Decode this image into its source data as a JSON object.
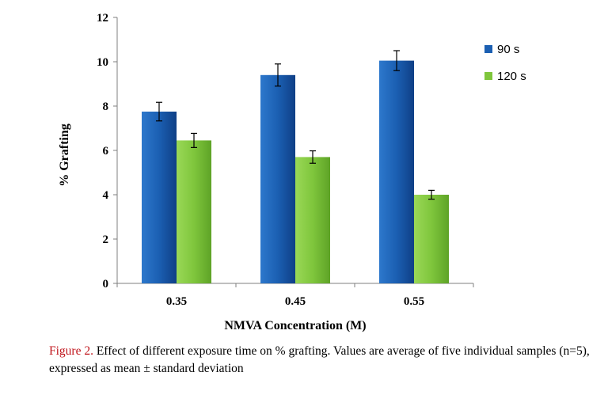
{
  "chart_data": {
    "type": "bar",
    "categories": [
      "0.35",
      "0.45",
      "0.55"
    ],
    "series": [
      {
        "name": "90 s",
        "values": [
          7.75,
          9.4,
          10.05
        ],
        "errors": [
          0.42,
          0.5,
          0.45
        ],
        "color": "#1b5fb2"
      },
      {
        "name": "120 s",
        "values": [
          6.45,
          5.7,
          4.0
        ],
        "errors": [
          0.32,
          0.28,
          0.2
        ],
        "color": "#7fc63c"
      }
    ],
    "ylim": [
      0,
      12
    ],
    "yticks": [
      "0",
      "2",
      "4",
      "6",
      "8",
      "10",
      "12"
    ],
    "ylabel": "% Grafting",
    "xlabel": "NMVA Concentration  (M)",
    "legend_position": "right",
    "grid": false
  },
  "caption": {
    "label": "Figure 2.",
    "text": " Effect of different exposure time on % grafting. Values are average of five individual samples (n=5), expressed as mean ± standard deviation"
  }
}
